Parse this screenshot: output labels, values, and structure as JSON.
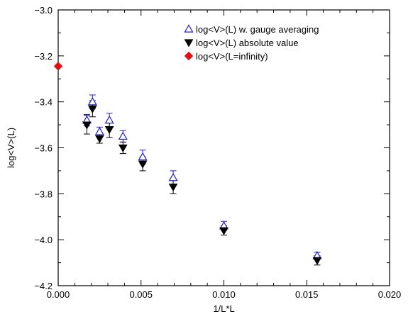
{
  "chart_data": {
    "type": "scatter",
    "title": "",
    "xlabel": "1/L*L",
    "ylabel": "log<V>(L)",
    "xlim": [
      0,
      0.02
    ],
    "ylim": [
      -4.2,
      -3.0
    ],
    "xticks": [
      0,
      0.005,
      0.01,
      0.015,
      0.02
    ],
    "xtick_labels": [
      "0.000",
      "0.005",
      "0.010",
      "0.015",
      "0.020"
    ],
    "yticks": [
      -4.2,
      -4.0,
      -3.8,
      -3.6,
      -3.4,
      -3.2,
      -3.0
    ],
    "ytick_labels": [
      "−4.2",
      "−4.0",
      "−3.8",
      "−3.6",
      "−3.4",
      "−3.2",
      "−3.0"
    ],
    "grid": false,
    "legend_position": "top-right",
    "series": [
      {
        "name": "log<V>(L) w. gauge averaging",
        "marker": "open-triangle-up",
        "color": "#1f1fcf",
        "points": [
          {
            "x": 0.00173,
            "y": -3.48,
            "err": 0.025
          },
          {
            "x": 0.00207,
            "y": -3.4,
            "err": 0.03
          },
          {
            "x": 0.0025,
            "y": -3.53,
            "err": 0.02
          },
          {
            "x": 0.00309,
            "y": -3.48,
            "err": 0.03
          },
          {
            "x": 0.00391,
            "y": -3.55,
            "err": 0.025
          },
          {
            "x": 0.0051,
            "y": -3.64,
            "err": 0.03
          },
          {
            "x": 0.00694,
            "y": -3.73,
            "err": 0.03
          },
          {
            "x": 0.01,
            "y": -3.94,
            "err": 0.02
          },
          {
            "x": 0.01563,
            "y": -4.07,
            "err": 0.015
          }
        ]
      },
      {
        "name": "log<V>(L) absolute value",
        "marker": "filled-triangle-down",
        "color": "#000000",
        "points": [
          {
            "x": 0.00173,
            "y": -3.5,
            "err": 0.04
          },
          {
            "x": 0.00207,
            "y": -3.43,
            "err": 0.035
          },
          {
            "x": 0.0025,
            "y": -3.56,
            "err": 0.02
          },
          {
            "x": 0.00309,
            "y": -3.52,
            "err": 0.035
          },
          {
            "x": 0.00391,
            "y": -3.6,
            "err": 0.025
          },
          {
            "x": 0.0051,
            "y": -3.67,
            "err": 0.03
          },
          {
            "x": 0.00694,
            "y": -3.77,
            "err": 0.03
          },
          {
            "x": 0.01,
            "y": -3.96,
            "err": 0.02
          },
          {
            "x": 0.01563,
            "y": -4.09,
            "err": 0.02
          }
        ]
      },
      {
        "name": "log<V>(L=infinity)",
        "marker": "filled-diamond",
        "color": "#e01010",
        "points": [
          {
            "x": 0.0,
            "y": -3.245
          }
        ]
      }
    ]
  }
}
